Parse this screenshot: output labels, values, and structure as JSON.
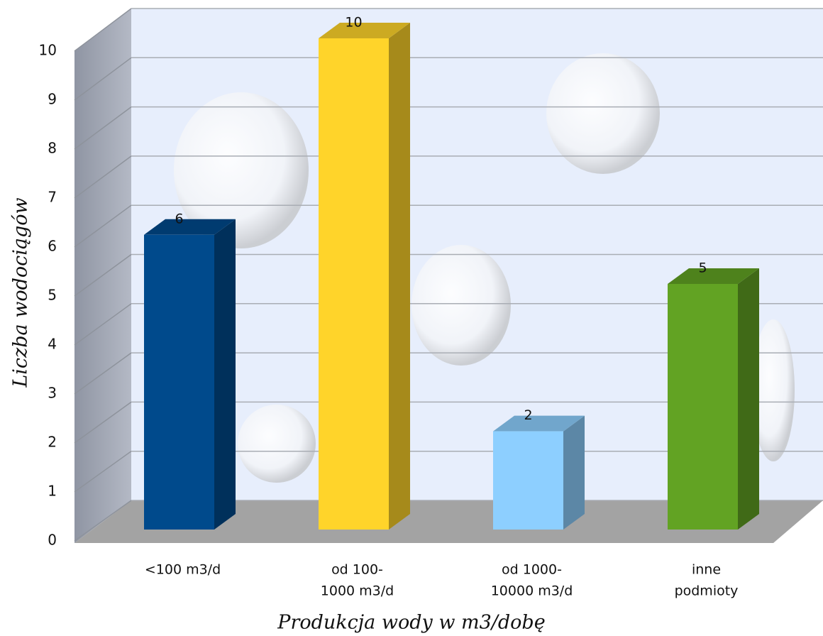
{
  "chart_data": {
    "type": "bar3d",
    "categories": [
      [
        "<100 m3/d"
      ],
      [
        "od 100-",
        "1000 m3/d"
      ],
      [
        "od 1000-",
        "10000 m3/d"
      ],
      [
        "inne",
        "podmioty"
      ]
    ],
    "values": [
      6,
      10,
      2,
      5
    ],
    "colors": [
      "#004a8c",
      "#ffd42a",
      "#8dcfff",
      "#62a323"
    ],
    "ylim": [
      0,
      10
    ],
    "yticks": [
      0,
      1,
      2,
      3,
      4,
      5,
      6,
      7,
      8,
      9,
      10
    ],
    "grid": true,
    "x_label": "Produkcja wody w m3/dobę",
    "y_label": "Liczba wodociągów"
  }
}
